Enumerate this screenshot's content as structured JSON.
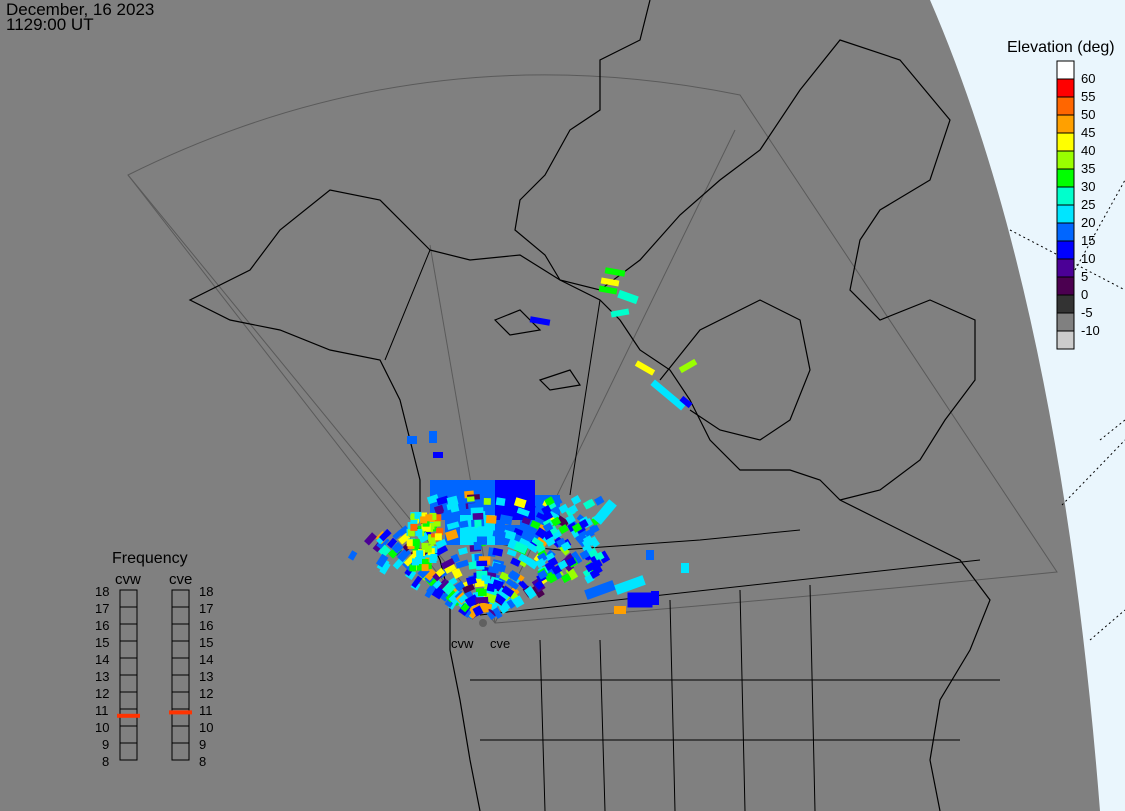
{
  "header": {
    "date": "December, 16 2023",
    "time": "1129:00 UT"
  },
  "elevation_legend": {
    "title": "Elevation (deg)",
    "labels": [
      "60",
      "55",
      "50",
      "45",
      "40",
      "35",
      "30",
      "25",
      "20",
      "15",
      "10",
      "5",
      "0",
      "-5",
      "-10"
    ],
    "colors": [
      "#ffffff",
      "#ff0000",
      "#ff6600",
      "#ffa000",
      "#ffff00",
      "#99ff00",
      "#00ff00",
      "#00ffcc",
      "#00e5ff",
      "#0066ff",
      "#0000ff",
      "#4b0096",
      "#4b0050",
      "#333333",
      "#808080",
      "#cccccc"
    ]
  },
  "frequency": {
    "title": "Frequency",
    "ticks": [
      "18",
      "17",
      "16",
      "15",
      "14",
      "13",
      "12",
      "11",
      "10",
      "9",
      "8"
    ],
    "radars": [
      {
        "name": "cvw",
        "value_mhz": 10.6
      },
      {
        "name": "cve",
        "value_mhz": 10.8
      }
    ],
    "marker_color": "#ff3300"
  },
  "sites": {
    "cvw": "cvw",
    "cve": "cve"
  },
  "colors": {
    "background": "#808080",
    "space": "#eaf6fd",
    "coast": "#000000",
    "fov": "#5a5a5a"
  }
}
